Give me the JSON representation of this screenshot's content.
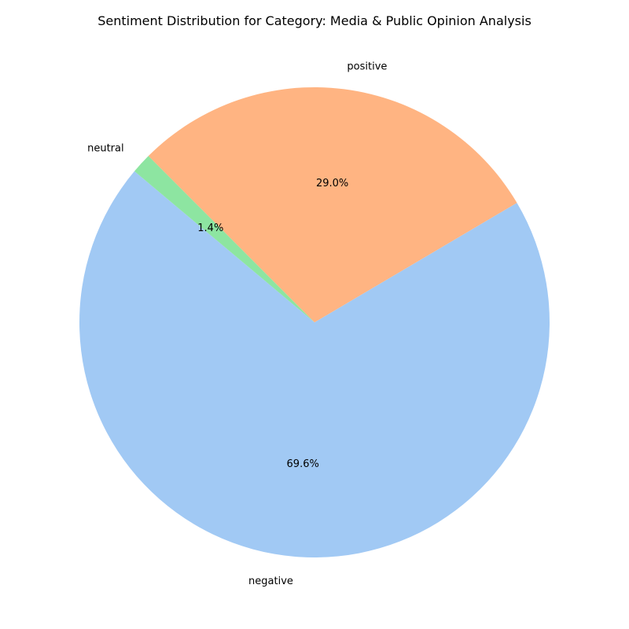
{
  "chart_data": {
    "type": "pie",
    "title": "Sentiment Distribution for Category: Media & Public Opinion Analysis",
    "start_angle_deg": 140,
    "direction": "counterclockwise",
    "slices": [
      {
        "label": "negative",
        "value": 69.6,
        "pct_label": "69.6%",
        "color": "#a1c9f4"
      },
      {
        "label": "positive",
        "value": 29.0,
        "pct_label": "29.0%",
        "color": "#ffb482"
      },
      {
        "label": "neutral",
        "value": 1.4,
        "pct_label": "1.4%",
        "color": "#8de5a1"
      }
    ]
  }
}
